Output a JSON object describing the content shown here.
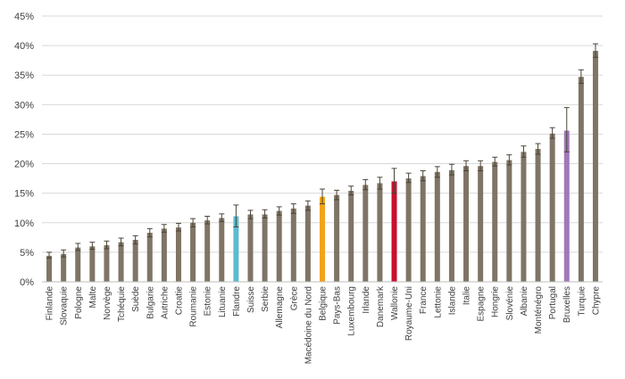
{
  "chart_data": {
    "type": "bar",
    "title": "",
    "xlabel": "",
    "ylabel": "",
    "ylim": [
      0,
      45
    ],
    "y_tick_values": [
      0,
      5,
      10,
      15,
      20,
      25,
      30,
      35,
      40,
      45
    ],
    "y_tick_labels": [
      "0%",
      "5%",
      "10%",
      "15%",
      "20%",
      "25%",
      "30%",
      "35%",
      "40%",
      "45%"
    ],
    "grid": "horizontal",
    "legend": "none",
    "default_color": "#7F7566",
    "categories": [
      "Finlande",
      "Slovaquie",
      "Pologne",
      "Malte",
      "Norvège",
      "Tchéquie",
      "Suède",
      "Bulgarie",
      "Autriche",
      "Croatie",
      "Roumanie",
      "Estonie",
      "Lituanie",
      "Flandre",
      "Suisse",
      "Serbie",
      "Allemagne",
      "Grèce",
      "Macédoine du Nord",
      "Belgique",
      "Pays-Bas",
      "Luxembourg",
      "Irlande",
      "Danemark",
      "Wallonie",
      "Royaume-Uni",
      "France",
      "Lettonie",
      "Islande",
      "Italie",
      "Espagne",
      "Hongrie",
      "Slovénie",
      "Albanie",
      "Monténégro",
      "Portugal",
      "Bruxelles",
      "Turquie",
      "Chypre"
    ],
    "values": [
      4.4,
      4.7,
      5.8,
      6.0,
      6.2,
      6.7,
      7.1,
      8.3,
      9.0,
      9.2,
      10.0,
      10.4,
      10.8,
      11.1,
      11.4,
      11.4,
      12.0,
      12.4,
      12.9,
      14.4,
      14.7,
      15.4,
      16.4,
      16.7,
      17.0,
      17.5,
      17.9,
      18.6,
      18.9,
      19.6,
      19.6,
      20.3,
      20.6,
      22.0,
      22.5,
      25.1,
      25.6,
      34.7,
      39.1
    ],
    "error_low": [
      4.0,
      4.2,
      5.3,
      5.5,
      5.6,
      6.1,
      6.4,
      7.6,
      8.4,
      8.6,
      9.3,
      9.8,
      10.2,
      9.3,
      10.7,
      10.8,
      11.3,
      11.6,
      12.1,
      13.2,
      13.9,
      14.7,
      15.6,
      15.7,
      15.0,
      16.8,
      17.1,
      17.7,
      18.1,
      18.8,
      18.8,
      19.6,
      19.8,
      21.1,
      21.6,
      24.3,
      22.0,
      33.6,
      38.0
    ],
    "error_high": [
      5.0,
      5.4,
      6.5,
      6.7,
      6.9,
      7.4,
      7.8,
      9.0,
      9.7,
      9.9,
      10.7,
      11.1,
      11.5,
      13.0,
      12.1,
      12.2,
      12.7,
      13.2,
      13.7,
      15.7,
      15.5,
      16.2,
      17.3,
      17.7,
      19.2,
      18.4,
      18.8,
      19.5,
      19.9,
      20.5,
      20.5,
      21.1,
      21.5,
      23.0,
      23.4,
      26.1,
      29.5,
      35.9,
      40.3
    ],
    "highlights": {
      "Flandre": "#5BBBD0",
      "Belgique": "#F3A31B",
      "Wallonie": "#C8102E",
      "Bruxelles": "#9F78B8"
    }
  }
}
